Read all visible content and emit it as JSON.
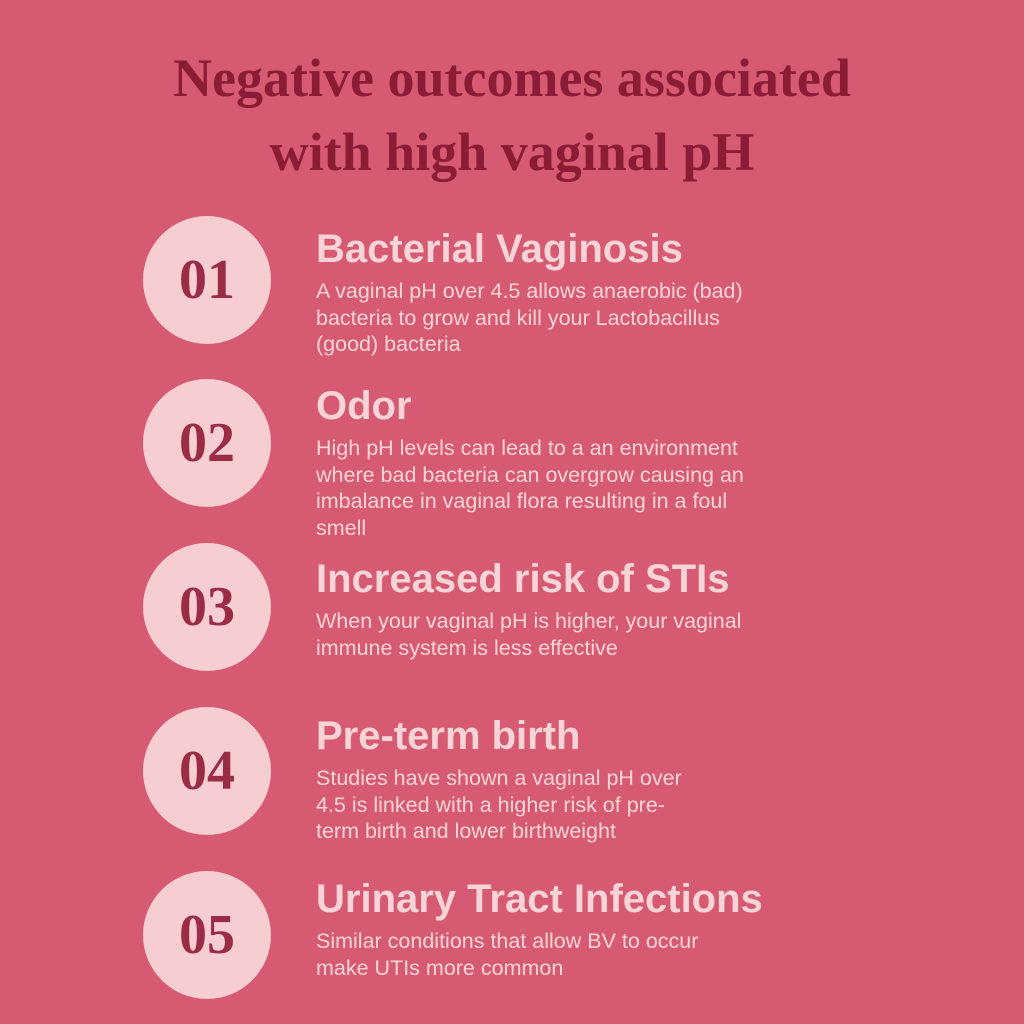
{
  "title": [
    "Negative outcomes associated",
    "with high vaginal pH"
  ],
  "items": [
    {
      "number": "01",
      "heading": "Bacterial Vaginosis",
      "body": [
        "A vaginal pH over 4.5 allows anaerobic (bad)",
        "bacteria to grow and kill your Lactobacillus",
        "(good) bacteria"
      ]
    },
    {
      "number": "02",
      "heading": "Odor",
      "body": [
        "High pH levels can lead to a an environment",
        "where bad bacteria can overgrow causing an",
        "imbalance in vaginal flora resulting in a foul",
        "smell"
      ]
    },
    {
      "number": "03",
      "heading": "Increased risk of STIs",
      "body": [
        "When your vaginal pH is higher, your vaginal",
        "immune system is less effective"
      ]
    },
    {
      "number": "04",
      "heading": "Pre-term birth",
      "body": [
        "Studies have shown a vaginal pH over",
        "4.5 is linked with a higher risk of pre-",
        "term birth and lower birthweight"
      ]
    },
    {
      "number": "05",
      "heading": "Urinary Tract Infections",
      "body": [
        "Similar conditions that allow BV to occur",
        "make UTIs more common"
      ]
    }
  ]
}
